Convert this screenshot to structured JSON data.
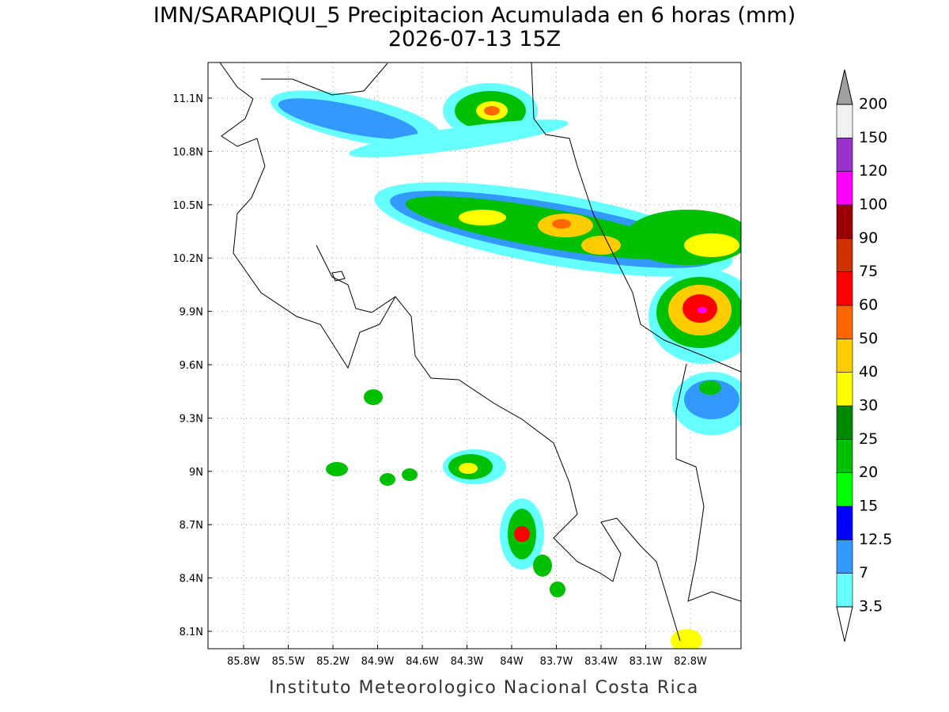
{
  "title": "IMN/SARAPIQUI_5 Precipitacion Acumulada en 6 horas (mm)",
  "subtitle": "2026-07-13 15Z",
  "map": {
    "x_ticks": [
      "85.8W",
      "85.5W",
      "85.2W",
      "84.9W",
      "84.6W",
      "84.3W",
      "84W",
      "83.7W",
      "83.4W",
      "83.1W",
      "82.8W"
    ],
    "y_ticks": [
      "11.1N",
      "10.8N",
      "10.5N",
      "10.2N",
      "9.9N",
      "9.6N",
      "9.3N",
      "9N",
      "8.7N",
      "8.4N",
      "8.1N"
    ]
  },
  "colorbar": {
    "labels": [
      "3.5",
      "7",
      "12.5",
      "15",
      "20",
      "25",
      "30",
      "40",
      "50",
      "60",
      "75",
      "90",
      "100",
      "120",
      "150",
      "200"
    ],
    "colors": [
      "#66ffff",
      "#3399ff",
      "#0000ff",
      "#00ff00",
      "#00c000",
      "#008800",
      "#ffff00",
      "#ffcc00",
      "#ff6600",
      "#ff0000",
      "#cc3300",
      "#990000",
      "#ff00ff",
      "#9933cc",
      "#f2f2f2"
    ],
    "under_color": "#ffffff",
    "over_color": "#a0a0a0"
  },
  "footer": "Instituto Meteorologico Nacional Costa Rica"
}
